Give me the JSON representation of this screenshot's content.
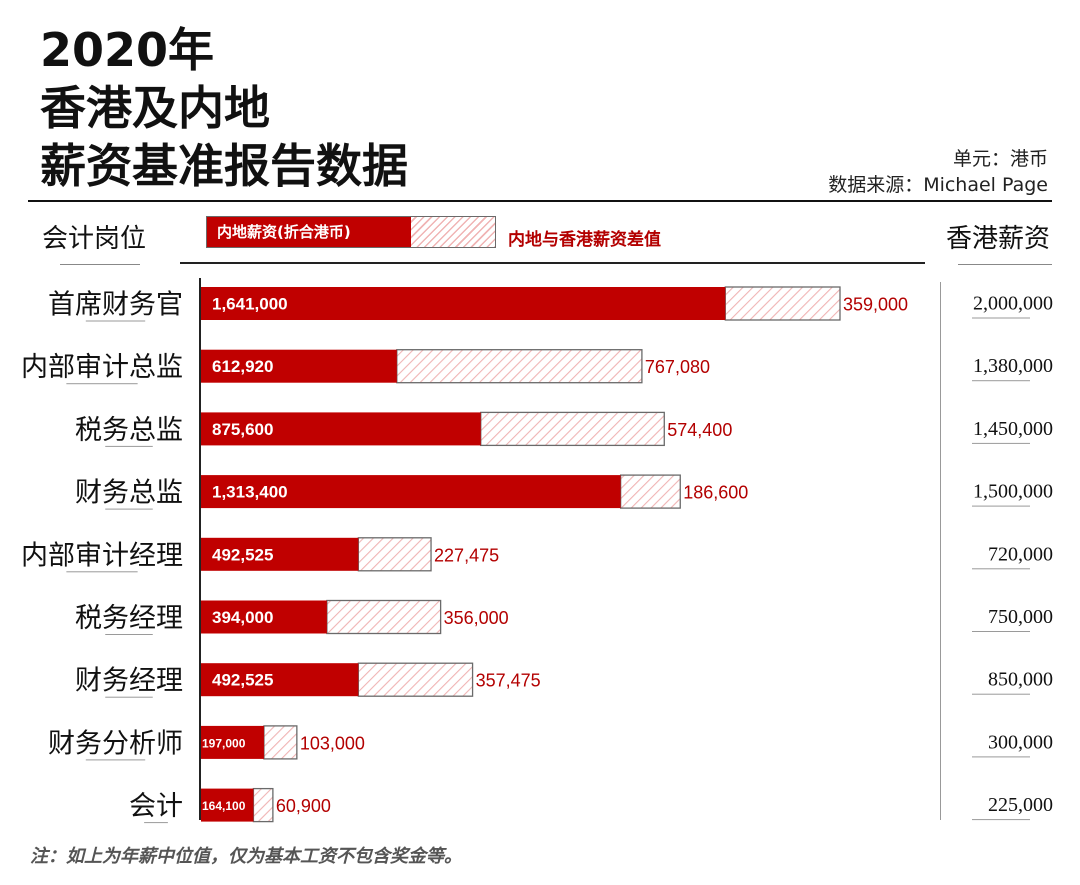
{
  "title_lines": [
    "2020年",
    "香港及内地",
    "薪资基准报告数据"
  ],
  "unit_label": "单元：港币",
  "source_label": "数据来源：Michael Page",
  "column_headers": {
    "position": "会计岗位",
    "hk_salary": "香港薪资"
  },
  "legend": {
    "mainland": "内地薪资(折合港币)",
    "difference": "内地与香港薪资差值"
  },
  "footnote": "注：如上为年薪中位值，仅为基本工资不包含奖金等。",
  "colors": {
    "mainland": "#c00000",
    "difference_hatch": "#f0b4b4",
    "difference_label": "#b30000"
  },
  "chart_data": {
    "type": "bar",
    "orientation": "horizontal",
    "stacked": true,
    "categories": [
      "首席财务官",
      "内部审计总监",
      "税务总监",
      "财务总监",
      "内部审计经理",
      "税务经理",
      "财务经理",
      "财务分析师",
      "会计"
    ],
    "series": [
      {
        "name": "内地薪资(折合港币)",
        "values": [
          1641000,
          612920,
          875600,
          1313400,
          492525,
          394000,
          492525,
          197000,
          164100
        ]
      },
      {
        "name": "内地与香港薪资差值",
        "values": [
          359000,
          767080,
          574400,
          186600,
          227475,
          356000,
          357475,
          103000,
          60900
        ]
      }
    ],
    "mainland_labels": [
      "1,641,000",
      "612,920",
      "875,600",
      "1,313,400",
      "492,525",
      "394,000",
      "492,525",
      "197,000",
      "164,100"
    ],
    "difference_labels": [
      "359,000",
      "767,080",
      "574,400",
      "186,600",
      "227,475",
      "356,000",
      "357,475",
      "103,000",
      "60,900"
    ],
    "hk_salary_labels": [
      "2,000,000",
      "1,380,000",
      "1,450,000",
      "1,500,000",
      "720,000",
      "750,000",
      "850,000",
      "300,000",
      "225,000"
    ],
    "xlim": [
      0,
      2000000
    ]
  }
}
